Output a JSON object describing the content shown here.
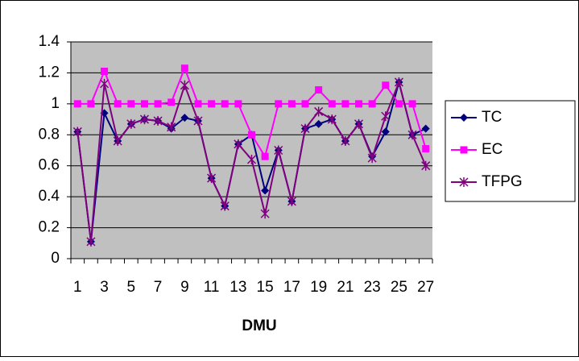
{
  "chart_data": {
    "type": "line",
    "x_label": "DMU",
    "categories": [
      1,
      null,
      3,
      null,
      5,
      null,
      7,
      null,
      9,
      null,
      11,
      null,
      13,
      null,
      15,
      null,
      17,
      null,
      19,
      null,
      21,
      null,
      23,
      null,
      25,
      null,
      27
    ],
    "series": [
      {
        "name": "TC",
        "color": "#000080",
        "marker": "diamond",
        "values": [
          0.82,
          0.11,
          0.94,
          0.76,
          0.87,
          0.9,
          0.89,
          0.84,
          0.91,
          0.89,
          0.52,
          0.34,
          0.74,
          0.8,
          0.44,
          0.7,
          0.37,
          0.84,
          0.87,
          0.9,
          0.76,
          0.87,
          0.66,
          0.82,
          1.14,
          0.8,
          0.84
        ]
      },
      {
        "name": "EC",
        "color": "#ff00ff",
        "marker": "square",
        "values": [
          1,
          1,
          1.21,
          1,
          1,
          1,
          1,
          1.01,
          1.23,
          1,
          1,
          1,
          1,
          0.8,
          0.66,
          1,
          1,
          1,
          1.09,
          1,
          1,
          1,
          1,
          1.12,
          1,
          1,
          0.71
        ]
      },
      {
        "name": "TFPG",
        "color": "#800080",
        "marker": "star",
        "values": [
          0.82,
          0.11,
          1.13,
          0.76,
          0.87,
          0.9,
          0.89,
          0.85,
          1.12,
          0.89,
          0.52,
          0.34,
          0.74,
          0.64,
          0.29,
          0.7,
          0.37,
          0.84,
          0.95,
          0.9,
          0.76,
          0.87,
          0.65,
          0.92,
          1.14,
          0.8,
          0.6
        ]
      }
    ],
    "ylim": [
      0,
      1.4
    ],
    "yticks": [
      0,
      0.2,
      0.4,
      0.6,
      0.8,
      1,
      1.2,
      1.4
    ],
    "grid": true,
    "legend": "right",
    "plot_background": "#c0c0c0"
  }
}
